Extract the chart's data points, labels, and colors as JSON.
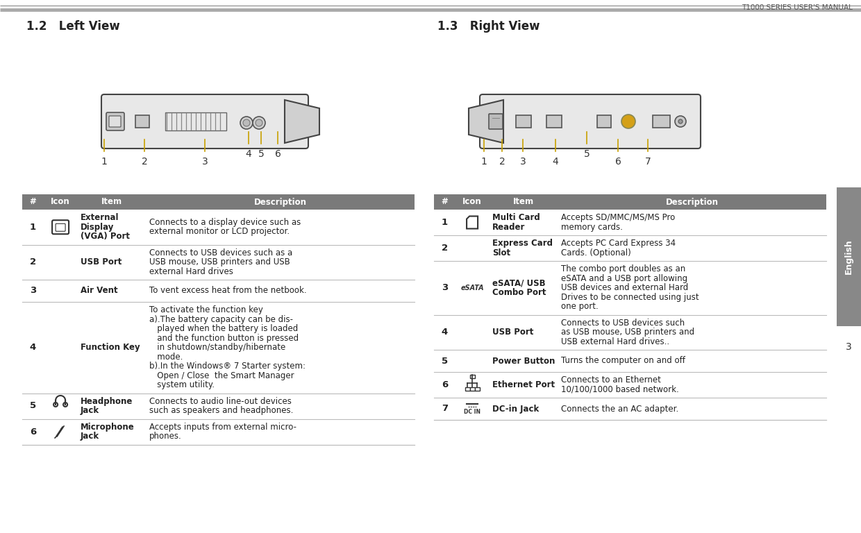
{
  "page_title": "T1000 SERIES USER'S MANUAL",
  "left_view_title": "1.2   Left View",
  "right_view_title": "1.3   Right View",
  "header_bg": "#7a7a7a",
  "text_color": "#222222",
  "left_table": {
    "rows": [
      {
        "num": "1",
        "icon": "vga",
        "item": "External\nDisplay\n(VGA) Port",
        "desc": "Connects to a display device such as\nexternal monitor or LCD projector."
      },
      {
        "num": "2",
        "icon": "",
        "item": "USB Port",
        "desc": "Connects to USB devices such as a\nUSB mouse, USB printers and USB\nexternal Hard drives"
      },
      {
        "num": "3",
        "icon": "",
        "item": "Air Vent",
        "desc": "To vent excess heat from the netbook."
      },
      {
        "num": "4",
        "icon": "",
        "item": "Function Key",
        "desc": "To activate the function key\na).The battery capacity can be dis-\n   played when the battery is loaded\n   and the function button is pressed\n   in shutdown/standby/hibernate\n   mode.\nb).In the Windows® 7 Starter system:\n   Open / Close  the Smart Manager\n   system utility."
      },
      {
        "num": "5",
        "icon": "headphone",
        "item": "Headphone\nJack",
        "desc": "Connects to audio line-out devices\nsuch as speakers and headphones."
      },
      {
        "num": "6",
        "icon": "mic",
        "item": "Microphone\nJack",
        "desc": "Accepts inputs from external micro-\nphones."
      }
    ]
  },
  "right_table": {
    "rows": [
      {
        "num": "1",
        "icon": "card",
        "item": "Multi Card\nReader",
        "desc": "Accepts SD/MMC/MS/MS Pro\nmemory cards."
      },
      {
        "num": "2",
        "icon": "",
        "item": "Express Card\nSlot",
        "desc": "Accepts PC Card Express 34\nCards. (Optional)"
      },
      {
        "num": "3",
        "icon": "esata",
        "item": "eSATA/ USB\nCombo Port",
        "desc": "The combo port doubles as an\neSATA and a USB port allowing\nUSB devices and external Hard\nDrives to be connected using just\none port."
      },
      {
        "num": "4",
        "icon": "",
        "item": "USB Port",
        "desc": "Connects to USB devices such\nas USB mouse, USB printers and\nUSB external Hard drives.."
      },
      {
        "num": "5",
        "icon": "",
        "item": "Power Button",
        "desc": "Turns the computer on and off"
      },
      {
        "num": "6",
        "icon": "ethernet",
        "item": "Ethernet Port",
        "desc": "Connects to an Ethernet\n10/100/1000 based network."
      },
      {
        "num": "7",
        "icon": "dcin",
        "item": "DC-in Jack",
        "desc": "Connects the an AC adapter."
      }
    ]
  }
}
